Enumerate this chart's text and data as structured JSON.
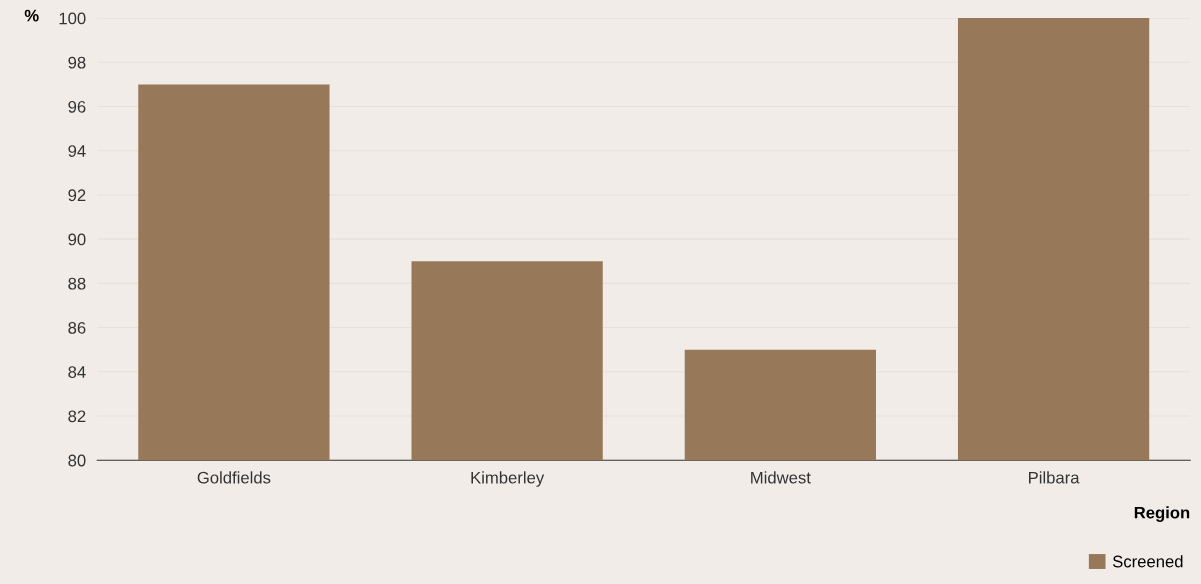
{
  "chart_data": {
    "type": "bar",
    "xlabel": "Region",
    "ylabel": "%",
    "categories": [
      "Goldfields",
      "Kimberley",
      "Midwest",
      "Pilbara"
    ],
    "series": [
      {
        "name": "Screened",
        "color": "#977859",
        "values": [
          97,
          89,
          85,
          100
        ]
      }
    ],
    "ylim": [
      80,
      100
    ],
    "yticks": [
      80,
      82,
      84,
      86,
      88,
      90,
      92,
      94,
      96,
      98,
      100
    ],
    "grid": "y",
    "legend": "bottom right"
  }
}
